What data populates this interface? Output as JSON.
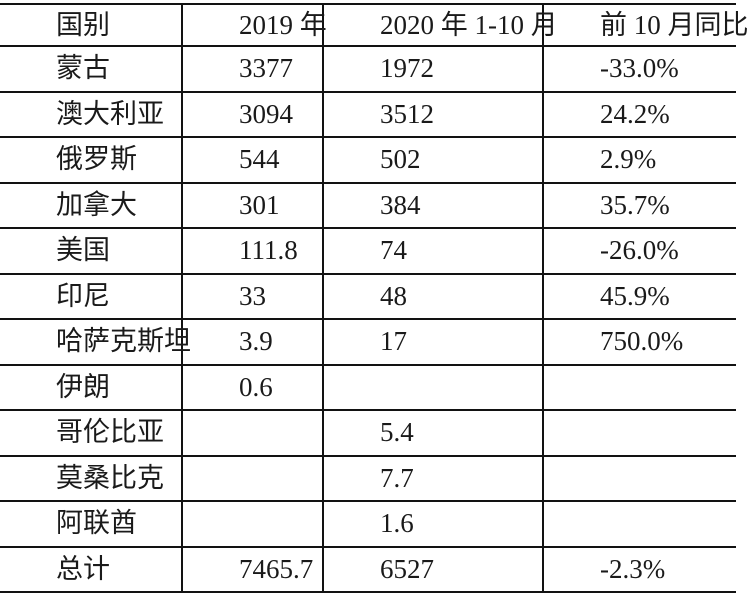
{
  "colors": {
    "background": "#ffffff",
    "border": "#121212",
    "text": "#1a1a1a"
  },
  "table": {
    "headers": [
      "国别",
      "2019 年",
      "2020 年 1-10 月",
      "前 10 月同比"
    ],
    "rows": [
      [
        "蒙古",
        "3377",
        "1972",
        "-33.0%"
      ],
      [
        "澳大利亚",
        "3094",
        "3512",
        "24.2%"
      ],
      [
        "俄罗斯",
        "544",
        "502",
        "2.9%"
      ],
      [
        "加拿大",
        "301",
        "384",
        "35.7%"
      ],
      [
        "美国",
        "111.8",
        "74",
        "-26.0%"
      ],
      [
        "印尼",
        "33",
        "48",
        "45.9%"
      ],
      [
        "哈萨克斯坦",
        "3.9",
        "17",
        "750.0%"
      ],
      [
        "伊朗",
        "0.6",
        "",
        ""
      ],
      [
        "哥伦比亚",
        "",
        "5.4",
        ""
      ],
      [
        "莫桑比克",
        "",
        "7.7",
        ""
      ],
      [
        "阿联酋",
        "",
        "1.6",
        ""
      ],
      [
        "总计",
        "7465.7",
        "6527",
        "-2.3%"
      ]
    ]
  }
}
